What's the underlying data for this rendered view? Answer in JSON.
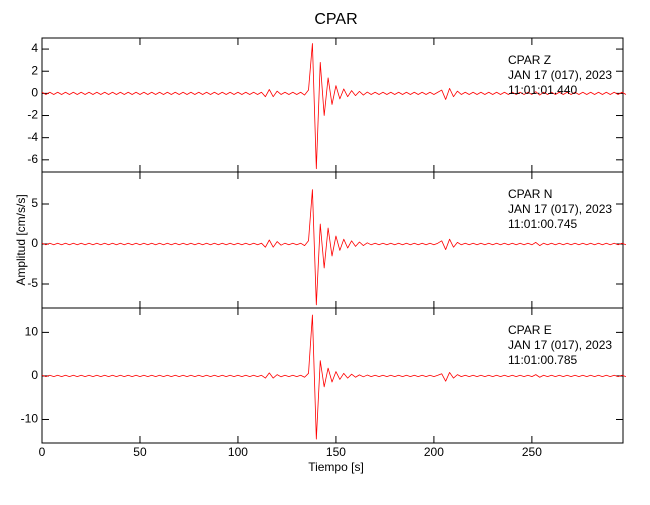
{
  "chart_data": {
    "type": "line",
    "title": "CPAR",
    "xlabel": "Tiempo [s]",
    "ylabel": "Amplitud [cm/s/s]",
    "xlim": [
      0,
      296.5
    ],
    "xticks": [
      0,
      50,
      100,
      150,
      200,
      250
    ],
    "x": [
      0,
      2,
      4,
      6,
      8,
      10,
      12,
      14,
      16,
      18,
      20,
      22,
      24,
      26,
      28,
      30,
      32,
      34,
      36,
      38,
      40,
      42,
      44,
      46,
      48,
      50,
      52,
      54,
      56,
      58,
      60,
      62,
      64,
      66,
      68,
      70,
      72,
      74,
      76,
      78,
      80,
      82,
      84,
      86,
      88,
      90,
      92,
      94,
      96,
      98,
      100,
      102,
      104,
      106,
      108,
      110,
      112,
      114,
      116,
      118,
      120,
      122,
      124,
      126,
      128,
      130,
      132,
      134,
      136,
      138,
      140,
      142,
      144,
      146,
      148,
      150,
      152,
      154,
      156,
      158,
      160,
      162,
      164,
      166,
      168,
      170,
      172,
      174,
      176,
      178,
      180,
      182,
      184,
      186,
      188,
      190,
      192,
      194,
      196,
      198,
      200,
      202,
      204,
      206,
      208,
      210,
      212,
      214,
      216,
      218,
      220,
      222,
      224,
      226,
      228,
      230,
      232,
      234,
      236,
      238,
      240,
      242,
      244,
      246,
      248,
      250,
      252,
      254,
      256,
      258,
      260,
      262,
      264,
      266,
      268,
      270,
      272,
      274,
      276,
      278,
      280,
      282,
      284,
      286,
      288,
      290,
      292,
      294,
      296,
      298
    ],
    "panels": [
      {
        "annotations": [
          "CPAR   Z",
          "JAN 17 (017), 2023",
          "11:01:01.440"
        ],
        "ylim": [
          -7.1,
          5
        ],
        "yticks": [
          -6,
          -4,
          -2,
          0,
          2,
          4
        ],
        "series": [
          {
            "color": "#ff0000",
            "values": [
              0.1,
              -0.1,
              0.1,
              -0.1,
              0.1,
              -0.1,
              0.1,
              -0.1,
              0.1,
              -0.1,
              0.1,
              -0.1,
              0.1,
              -0.1,
              0.1,
              -0.1,
              0.1,
              -0.1,
              0.1,
              -0.1,
              0.1,
              -0.1,
              0.1,
              -0.1,
              0.1,
              -0.1,
              0.1,
              -0.1,
              0.1,
              -0.1,
              0.1,
              -0.1,
              0.1,
              -0.1,
              0.1,
              -0.1,
              0.1,
              -0.1,
              0.1,
              -0.1,
              0.1,
              -0.1,
              0.1,
              -0.1,
              0.1,
              -0.1,
              0.1,
              -0.1,
              0.1,
              -0.1,
              0.1,
              -0.1,
              0.1,
              -0.1,
              0.1,
              -0.1,
              0.1,
              -0.3,
              0.35,
              -0.3,
              0.2,
              -0.1,
              0.1,
              -0.1,
              0.1,
              -0.1,
              0.1,
              -0.15,
              0.3,
              4.5,
              -6.8,
              2.8,
              -2.0,
              1.4,
              -1.0,
              0.7,
              -0.5,
              0.4,
              -0.3,
              0.25,
              -0.2,
              0.18,
              -0.15,
              0.12,
              -0.1,
              0.1,
              -0.1,
              0.1,
              -0.1,
              0.1,
              -0.1,
              0.1,
              -0.1,
              0.1,
              -0.1,
              0.1,
              -0.1,
              0.1,
              -0.1,
              0.1,
              -0.1,
              0.1,
              0.3,
              -0.55,
              0.45,
              -0.3,
              0.2,
              -0.1,
              0.1,
              -0.1,
              0.1,
              -0.1,
              0.1,
              -0.1,
              0.1,
              -0.1,
              0.1,
              -0.1,
              0.1,
              -0.1,
              0.1,
              -0.1,
              0.1,
              -0.1,
              0.1,
              -0.1,
              0.15,
              -0.15,
              0.1,
              -0.1,
              0.1,
              -0.1,
              0.1,
              -0.1,
              0.1,
              -0.1,
              0.1,
              -0.1,
              0.1,
              -0.1,
              0.1,
              -0.1,
              0.1,
              -0.1,
              0.1,
              -0.1,
              0.1,
              -0.1,
              0.1,
              -0.1
            ]
          }
        ]
      },
      {
        "annotations": [
          "CPAR   N",
          "JAN 17 (017), 2023",
          "11:01:00.745"
        ],
        "ylim": [
          -8,
          9
        ],
        "yticks": [
          -5,
          0,
          5
        ],
        "series": [
          {
            "color": "#ff0000",
            "values": [
              0.1,
              -0.1,
              0.1,
              -0.1,
              0.1,
              -0.1,
              0.1,
              -0.1,
              0.1,
              -0.1,
              0.1,
              -0.1,
              0.1,
              -0.1,
              0.1,
              -0.1,
              0.1,
              -0.1,
              0.1,
              -0.1,
              0.1,
              -0.1,
              0.1,
              -0.1,
              0.1,
              -0.1,
              0.1,
              -0.1,
              0.1,
              -0.1,
              0.1,
              -0.1,
              0.1,
              -0.1,
              0.1,
              -0.1,
              0.1,
              -0.1,
              0.1,
              -0.1,
              0.1,
              -0.1,
              0.1,
              -0.1,
              0.1,
              -0.1,
              0.1,
              -0.1,
              0.1,
              -0.1,
              0.1,
              -0.1,
              0.1,
              -0.1,
              0.1,
              -0.1,
              0.1,
              -0.4,
              0.5,
              -0.4,
              0.3,
              -0.15,
              0.1,
              -0.1,
              0.1,
              -0.1,
              0.1,
              -0.2,
              0.4,
              6.8,
              -7.6,
              2.5,
              -3.0,
              2.0,
              -1.5,
              1.0,
              -0.8,
              0.6,
              -0.5,
              0.4,
              -0.3,
              0.25,
              -0.2,
              0.15,
              -0.1,
              0.1,
              -0.1,
              0.1,
              -0.1,
              0.1,
              -0.1,
              0.1,
              -0.1,
              0.1,
              -0.1,
              0.1,
              -0.1,
              0.1,
              -0.1,
              0.1,
              -0.1,
              0.1,
              0.4,
              -0.7,
              0.6,
              -0.4,
              0.2,
              -0.1,
              0.1,
              -0.1,
              0.1,
              -0.1,
              0.1,
              -0.1,
              0.1,
              -0.1,
              0.1,
              -0.1,
              0.1,
              -0.1,
              0.1,
              -0.1,
              0.1,
              -0.1,
              0.1,
              -0.1,
              0.2,
              -0.2,
              0.1,
              -0.1,
              0.1,
              -0.1,
              0.1,
              -0.1,
              0.1,
              -0.1,
              0.1,
              -0.1,
              0.1,
              -0.1,
              0.1,
              -0.1,
              0.1,
              -0.1,
              0.1,
              -0.1,
              0.1,
              -0.1,
              0.1,
              -0.1
            ]
          }
        ]
      },
      {
        "annotations": [
          "CPAR   E",
          "JAN 17 (017), 2023",
          "11:01:00.785"
        ],
        "ylim": [
          -15.4,
          15.6
        ],
        "yticks": [
          -10,
          0,
          10
        ],
        "series": [
          {
            "color": "#ff0000",
            "values": [
              0.15,
              -0.15,
              0.15,
              -0.15,
              0.15,
              -0.15,
              0.15,
              -0.15,
              0.15,
              -0.15,
              0.15,
              -0.15,
              0.15,
              -0.15,
              0.15,
              -0.15,
              0.15,
              -0.15,
              0.15,
              -0.15,
              0.15,
              -0.15,
              0.15,
              -0.15,
              0.15,
              -0.15,
              0.15,
              -0.15,
              0.15,
              -0.15,
              0.15,
              -0.15,
              0.15,
              -0.15,
              0.15,
              -0.15,
              0.15,
              -0.15,
              0.15,
              -0.15,
              0.15,
              -0.15,
              0.15,
              -0.15,
              0.15,
              -0.15,
              0.15,
              -0.15,
              0.15,
              -0.15,
              0.15,
              -0.15,
              0.15,
              -0.15,
              0.15,
              -0.15,
              0.15,
              -0.5,
              0.7,
              -0.5,
              0.3,
              -0.2,
              0.15,
              -0.15,
              0.15,
              -0.15,
              0.15,
              -0.3,
              0.6,
              14,
              -14.5,
              3.5,
              -2.5,
              1.8,
              -1.4,
              1.0,
              -0.8,
              0.6,
              -0.5,
              0.4,
              -0.3,
              0.25,
              -0.2,
              0.2,
              -0.15,
              0.15,
              -0.15,
              0.15,
              -0.15,
              0.15,
              -0.15,
              0.15,
              -0.15,
              0.15,
              -0.15,
              0.15,
              -0.15,
              0.15,
              -0.15,
              0.15,
              -0.15,
              0.15,
              0.5,
              -1.2,
              0.8,
              -0.5,
              0.3,
              -0.15,
              0.15,
              -0.15,
              0.15,
              -0.15,
              0.15,
              -0.15,
              0.15,
              -0.15,
              0.15,
              -0.15,
              0.15,
              -0.15,
              0.15,
              -0.15,
              0.15,
              -0.15,
              0.15,
              -0.15,
              0.3,
              -0.3,
              0.15,
              -0.15,
              0.15,
              -0.15,
              0.15,
              -0.15,
              0.15,
              -0.15,
              0.15,
              -0.15,
              0.15,
              -0.15,
              0.15,
              -0.15,
              0.15,
              -0.15,
              0.15,
              -0.15,
              0.15,
              -0.15,
              0.15,
              -0.15
            ]
          }
        ]
      }
    ]
  }
}
